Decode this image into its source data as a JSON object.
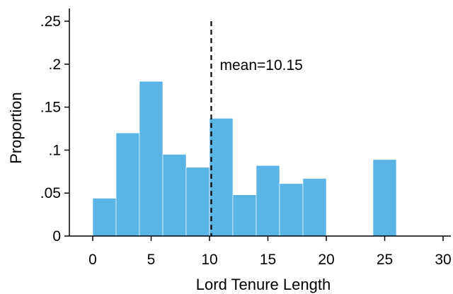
{
  "chart_data": {
    "type": "bar",
    "title": "",
    "xlabel": "Lord Tenure Length",
    "ylabel": "Proportion",
    "bin_width": 2,
    "x": [
      0,
      2,
      4,
      6,
      8,
      10,
      12,
      14,
      16,
      18,
      20,
      22,
      24
    ],
    "values": [
      0.044,
      0.12,
      0.18,
      0.095,
      0.08,
      0.137,
      0.048,
      0.082,
      0.061,
      0.067,
      0,
      0,
      0.089
    ],
    "xlim": [
      0,
      30
    ],
    "ylim": [
      0,
      0.25
    ],
    "x_ticks": [
      0,
      5,
      10,
      15,
      20,
      25,
      30
    ],
    "x_tick_labels": [
      "0",
      "5",
      "10",
      "15",
      "20",
      "25",
      "30"
    ],
    "y_ticks": [
      0,
      0.05,
      0.1,
      0.15,
      0.2,
      0.25
    ],
    "y_tick_labels": [
      "0",
      ".05",
      ".1",
      ".15",
      ".2",
      ".25"
    ],
    "bar_color": "#5ab4e5",
    "mean_value": 10.15,
    "mean_label": "mean=10.15",
    "grid": false,
    "legend": "none"
  }
}
